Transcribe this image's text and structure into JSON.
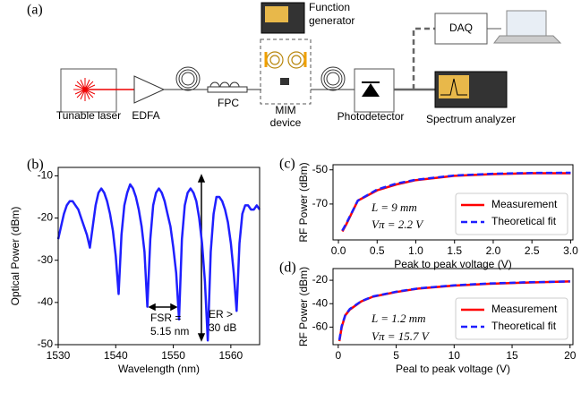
{
  "figure": {
    "label": "(a)",
    "labels": {
      "laser": "Tunable laser",
      "edfa": "EDFA",
      "fpc": "FPC",
      "device": [
        "MIM",
        "device"
      ],
      "generator": [
        "Function",
        "generator"
      ],
      "detector": "Photodetector",
      "daq": "DAQ",
      "analyzer": "Spectrum analyzer"
    }
  },
  "chart_data": [
    {
      "type": "line",
      "label": "(b)",
      "xlabel": "Wavelength (nm)",
      "ylabel": "Optical Power (dBm)",
      "color": "#1f1fff",
      "x": [
        1530,
        1530.5,
        1531,
        1531.5,
        1532,
        1532.5,
        1533,
        1533.5,
        1534,
        1534.5,
        1535,
        1535.5,
        1536,
        1536.5,
        1537,
        1537.5,
        1538,
        1538.5,
        1539,
        1539.5,
        1540,
        1540.5,
        1541,
        1541.5,
        1542,
        1542.5,
        1543,
        1543.5,
        1544,
        1544.5,
        1545,
        1545.5,
        1546,
        1546.5,
        1547,
        1547.5,
        1548,
        1548.5,
        1549,
        1549.5,
        1550,
        1550.5,
        1551,
        1551.5,
        1552,
        1552.5,
        1553,
        1553.5,
        1554,
        1554.5,
        1555,
        1555.5,
        1556,
        1556.5,
        1557,
        1557.5,
        1558,
        1558.5,
        1559,
        1559.5,
        1560,
        1560.5,
        1561,
        1561.5,
        1562,
        1562.5,
        1563,
        1563.5,
        1564,
        1564.5,
        1565
      ],
      "values": [
        -25,
        -22,
        -19,
        -17,
        -16,
        -16,
        -17,
        -18,
        -20,
        -22,
        -24,
        -27,
        -22,
        -17,
        -14,
        -13,
        -14,
        -16,
        -19,
        -23,
        -29,
        -38,
        -24,
        -17,
        -14,
        -12,
        -13,
        -15,
        -18,
        -22,
        -28,
        -41,
        -25,
        -17,
        -14,
        -13,
        -14,
        -16,
        -19,
        -22,
        -27,
        -33,
        -44,
        -25,
        -17,
        -14,
        -13,
        -14,
        -16,
        -20,
        -26,
        -35,
        -49,
        -28,
        -19,
        -15,
        -15,
        -16,
        -18,
        -21,
        -26,
        -33,
        -42,
        -26,
        -19,
        -17,
        -17,
        -18,
        -18,
        -17,
        -18
      ],
      "xlim": [
        1530,
        1565
      ],
      "ylim": [
        -50,
        -8
      ],
      "xticks": [
        1530,
        1540,
        1550,
        1560
      ],
      "yticks": [
        -50,
        -40,
        -30,
        -20,
        -10
      ],
      "annotations": [
        "FSR =",
        "5.15 nm",
        "ER >",
        "30 dB"
      ]
    },
    {
      "type": "line",
      "label": "(c)",
      "xlabel": "Peak to peak voltage (V)",
      "ylabel": "RF Power (dBm)",
      "x": [
        0.05,
        0.1,
        0.25,
        0.5,
        0.75,
        1,
        1.5,
        2,
        2.5,
        3
      ],
      "series": [
        {
          "name": "Measurement",
          "color": "#ff0000",
          "linestyle": "solid",
          "values": [
            -86,
            -82,
            -68,
            -62,
            -58.5,
            -56,
            -53.5,
            -52.5,
            -52,
            -52
          ]
        },
        {
          "name": "Theoretical fit",
          "color": "#1f1fff",
          "linestyle": "dashed",
          "values": [
            -85.5,
            -81.5,
            -68,
            -61.5,
            -58,
            -55.8,
            -53.3,
            -52.3,
            -51.8,
            -51.7
          ]
        }
      ],
      "xlim": [
        -0.07,
        3.03
      ],
      "ylim": [
        -91,
        -47
      ],
      "xticks": [
        {
          "value": 0,
          "label": "0.0"
        },
        0.5,
        {
          "value": 1,
          "label": "1.0"
        },
        1.5,
        {
          "value": 2,
          "label": "2.0"
        },
        2.5,
        {
          "value": 3,
          "label": "3.0"
        }
      ],
      "yticks": [
        -70,
        -50
      ],
      "legend": "lower right",
      "annotations": [
        "L = 9 mm",
        "Vπ = 2.2 V"
      ]
    },
    {
      "type": "line",
      "label": "(d)",
      "xlabel": "Peal to peak voltage (V)",
      "ylabel": "RF Power (dBm)",
      "x": [
        0.1,
        0.3,
        0.6,
        1,
        2,
        3,
        5,
        7,
        10,
        13,
        16,
        20
      ],
      "series": [
        {
          "name": "Measurement",
          "color": "#ff0000",
          "linestyle": "solid",
          "values": [
            -72,
            -60,
            -50,
            -45,
            -38,
            -34,
            -30,
            -27,
            -24.5,
            -23,
            -22,
            -21
          ]
        },
        {
          "name": "Theoretical fit",
          "color": "#1f1fff",
          "linestyle": "dashed",
          "values": [
            -71,
            -59,
            -50,
            -44.5,
            -37.8,
            -33.8,
            -29.8,
            -26.8,
            -24.3,
            -22.8,
            -21.8,
            -21
          ]
        }
      ],
      "xlim": [
        -0.45,
        20.25
      ],
      "ylim": [
        -75,
        -10
      ],
      "xticks": [
        0,
        5,
        10,
        15,
        20
      ],
      "yticks": [
        -60,
        -40,
        -20
      ],
      "legend": "lower right",
      "annotations": [
        "L = 1.2 mm",
        "Vπ = 15.7 V"
      ]
    }
  ]
}
